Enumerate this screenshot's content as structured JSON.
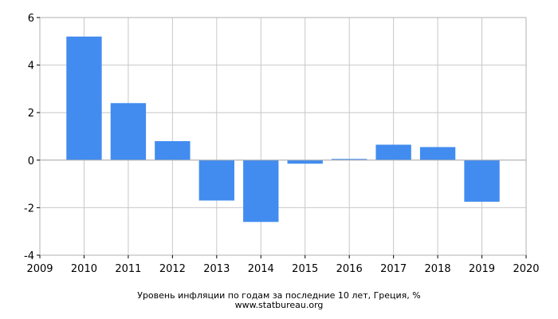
{
  "chart_data": {
    "type": "bar",
    "categories": [
      "2010",
      "2011",
      "2012",
      "2013",
      "2014",
      "2015",
      "2016",
      "2017",
      "2018",
      "2019"
    ],
    "x": [
      2010,
      2011,
      2012,
      2013,
      2014,
      2015,
      2016,
      2017,
      2018,
      2019
    ],
    "values": [
      5.2,
      2.4,
      0.8,
      -1.7,
      -2.6,
      -0.15,
      0.05,
      0.65,
      0.55,
      -1.75
    ],
    "xlim": [
      2009,
      2020
    ],
    "xticks": [
      "2009",
      "2010",
      "2011",
      "2012",
      "2013",
      "2014",
      "2015",
      "2016",
      "2017",
      "2018",
      "2019",
      "2020"
    ],
    "ylim": [
      -4,
      6
    ],
    "yticks": [
      "-4",
      "-2",
      "0",
      "2",
      "4",
      "6"
    ],
    "grid": true,
    "bar_color": "#428cf0",
    "title": "Уровень инфляции по годам за последние 10 лет, Греция, %",
    "source": "www.statbureau.org"
  }
}
